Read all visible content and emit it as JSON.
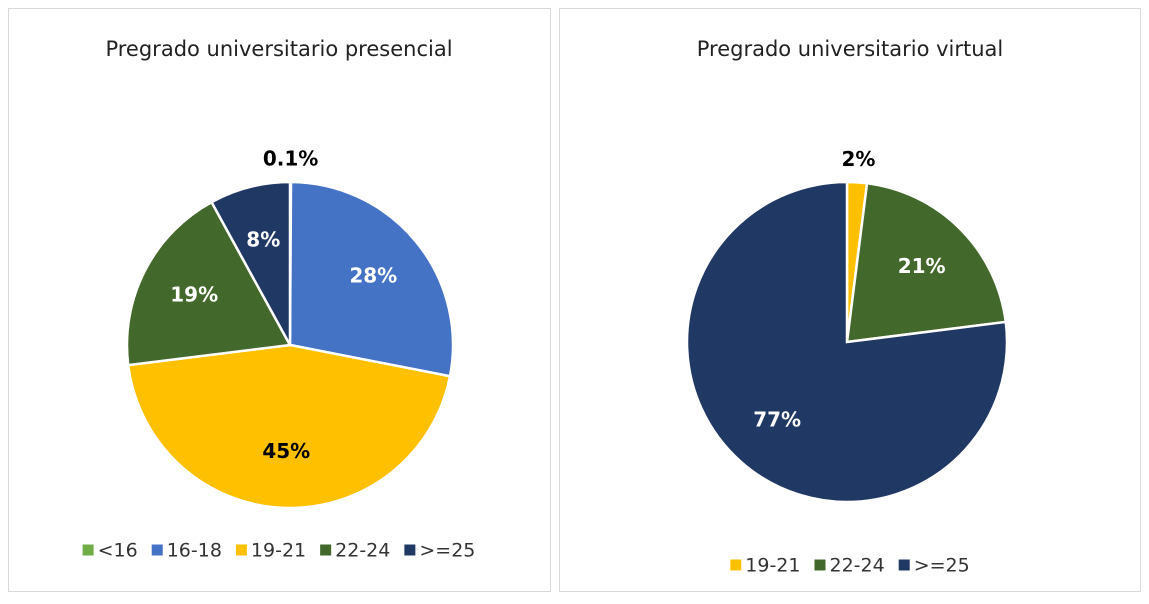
{
  "chart_data": [
    {
      "type": "pie",
      "title": "Pregrado universitario presencial",
      "categories": [
        "<16",
        "16-18",
        "19-21",
        "22-24",
        ">=25"
      ],
      "values": [
        0.1,
        28,
        45,
        19,
        8
      ],
      "value_labels": [
        "0.1%",
        "28%",
        "45%",
        "19%",
        "8%"
      ],
      "colors": [
        "#70ad47",
        "#4472c4",
        "#ffc000",
        "#43682b",
        "#203864"
      ],
      "legend": "bottom"
    },
    {
      "type": "pie",
      "title": "Pregrado universitario virtual",
      "categories": [
        "19-21",
        "22-24",
        ">=25"
      ],
      "values": [
        2,
        21,
        77
      ],
      "value_labels": [
        "2%",
        "21%",
        "77%"
      ],
      "colors": [
        "#ffc000",
        "#43682b",
        "#203864"
      ],
      "legend": "bottom"
    }
  ]
}
